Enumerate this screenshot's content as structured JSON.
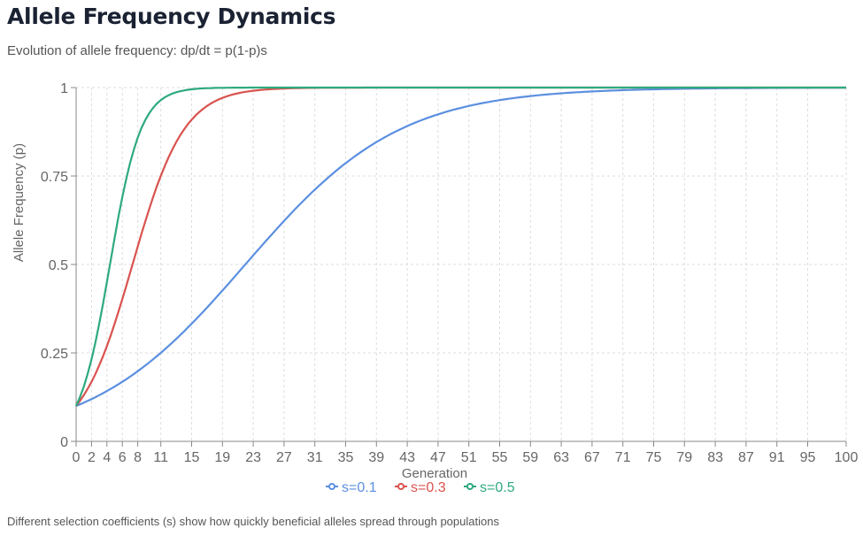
{
  "title": "Allele Frequency Dynamics",
  "subtitle": "Evolution of allele frequency: dp/dt = p(1-p)s",
  "footnote": "Different selection coefficients (s) show how quickly beneficial alleles spread through populations",
  "chart_data": {
    "type": "line",
    "xlabel": "Generation",
    "ylabel": "Allele Frequency (p)",
    "xlim": [
      0,
      100
    ],
    "ylim": [
      0,
      1
    ],
    "x_ticks": [
      0,
      2,
      4,
      6,
      8,
      11,
      15,
      19,
      23,
      27,
      31,
      35,
      39,
      43,
      47,
      51,
      55,
      59,
      63,
      67,
      71,
      75,
      79,
      83,
      87,
      91,
      95,
      100
    ],
    "y_ticks": [
      0,
      0.25,
      0.5,
      0.75,
      1
    ],
    "y_tick_labels": [
      "0",
      "0.25",
      "0.5",
      "0.75",
      "1"
    ],
    "grid": true,
    "legend_position": "bottom",
    "model": "logistic p(t)=p0*e^(st)/(1-p0+p0*e^(st))",
    "series": [
      {
        "name": "s=0.1",
        "s": 0.1,
        "p0": 0.1,
        "color": "#5b8fe0"
      },
      {
        "name": "s=0.3",
        "s": 0.3,
        "p0": 0.1,
        "color": "#d9534f"
      },
      {
        "name": "s=0.5",
        "s": 0.5,
        "p0": 0.1,
        "color": "#2eaa7e"
      }
    ]
  }
}
